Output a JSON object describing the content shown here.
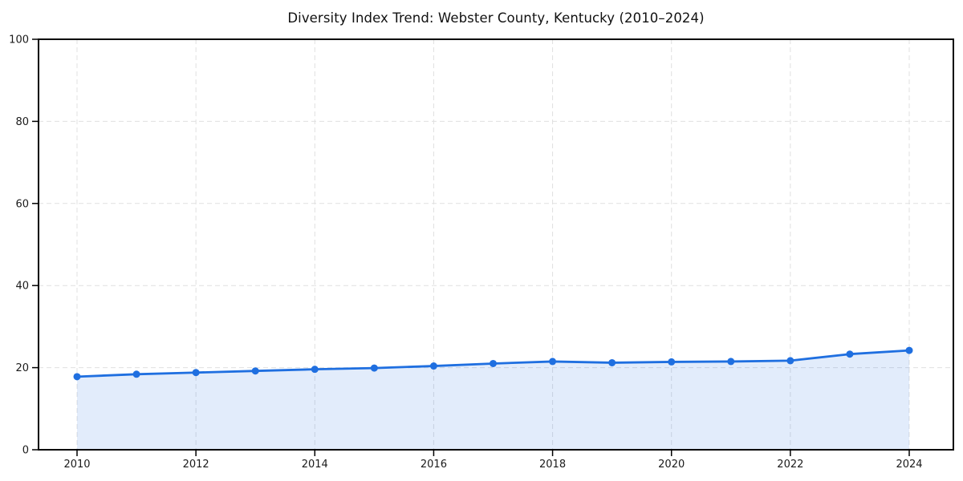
{
  "chart_data": {
    "type": "line",
    "title": "Diversity Index Trend: Webster County, Kentucky (2010–2024)",
    "xlabel": "",
    "ylabel": "",
    "x": [
      2010,
      2011,
      2012,
      2013,
      2014,
      2015,
      2016,
      2017,
      2018,
      2019,
      2020,
      2021,
      2022,
      2023,
      2024
    ],
    "series": [
      {
        "name": "Diversity Index",
        "values": [
          17.8,
          18.4,
          18.8,
          19.2,
          19.6,
          19.9,
          20.4,
          21.0,
          21.5,
          21.2,
          21.4,
          21.5,
          21.7,
          23.3,
          24.2
        ]
      }
    ],
    "ylim": [
      0,
      100
    ],
    "xticks": [
      2010,
      2012,
      2014,
      2016,
      2018,
      2020,
      2022,
      2024
    ],
    "xtick_labels": [
      "2010",
      "2012",
      "2014",
      "2016",
      "2018",
      "2020",
      "2022",
      "2024"
    ],
    "yticks": [
      0,
      20,
      40,
      60,
      80,
      100
    ],
    "ytick_labels": [
      "0",
      "20",
      "40",
      "60",
      "80",
      "100"
    ],
    "grid": true,
    "grid_style": "dashed",
    "legend": "none",
    "colors": {
      "line": "#1f6fe0",
      "marker": "#1f6fe0",
      "fill": "#1f6fe0",
      "fill_opacity": 0.13,
      "grid": "#e0e0e0",
      "spine": "#000000",
      "tick_text": "#1a1a1a",
      "background": "#ffffff"
    }
  }
}
